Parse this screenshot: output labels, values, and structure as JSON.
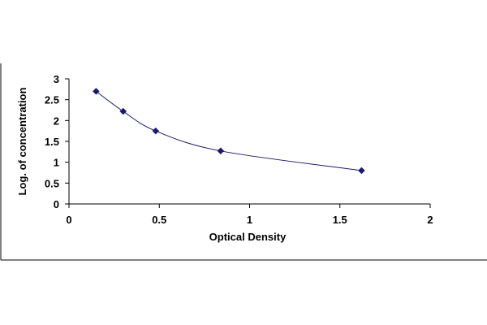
{
  "chart_data": {
    "type": "scatter",
    "title": "",
    "xlabel": "Optical Density",
    "ylabel": "Log. of concentration",
    "xlim": [
      0,
      2
    ],
    "ylim": [
      0,
      3
    ],
    "x_ticks": [
      "0",
      "0.5",
      "1",
      "1.5",
      "2"
    ],
    "y_ticks": [
      "0",
      "0.5",
      "1",
      "1.5",
      "2",
      "2.5",
      "3"
    ],
    "grid": false,
    "legend": "none",
    "curve": "smoothed line through points",
    "series": [
      {
        "x": [
          0.15,
          0.3,
          0.48,
          0.84,
          1.62
        ],
        "y": [
          2.7,
          2.22,
          1.75,
          1.27,
          0.8
        ]
      }
    ],
    "colors": {
      "marker": "#1a1a6e",
      "line": "#1a1a6e",
      "axis": "#000000",
      "frame": "#000000"
    }
  }
}
